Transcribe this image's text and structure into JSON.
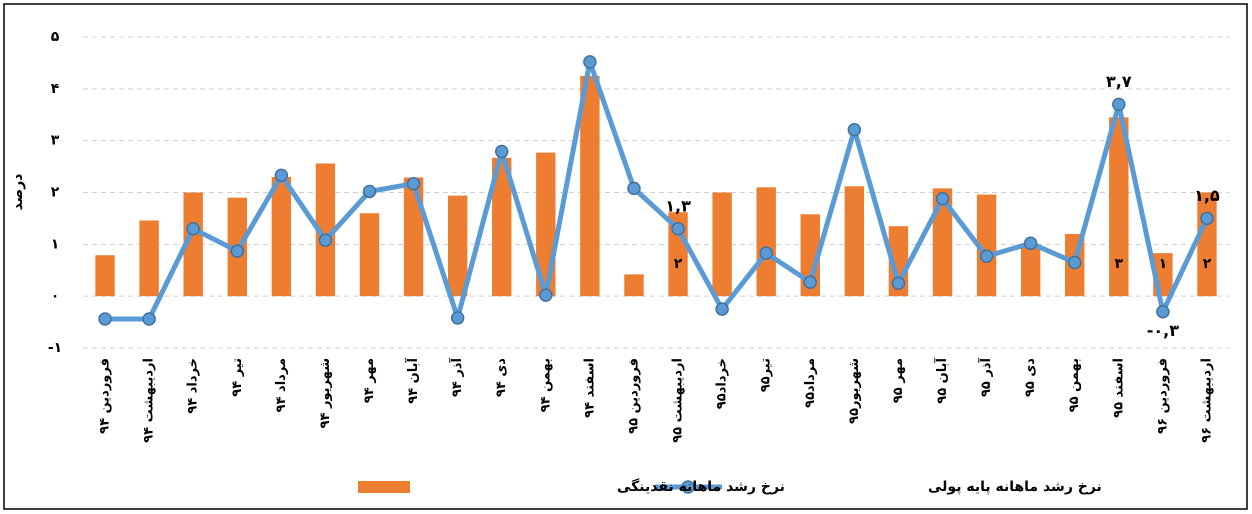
{
  "chart_data": {
    "type": "bar_line",
    "y_label": "درصد",
    "categories": [
      "فروردین ۹۴",
      "اردیبهشت ۹۴",
      "خرداد ۹۴",
      "تیر ۹۴",
      "مرداد ۹۴",
      "شهریور ۹۴",
      "مهر ۹۴",
      "آبان ۹۴",
      "آذر ۹۴",
      "دی ۹۴",
      "بهمن ۹۴",
      "اسفند ۹۴",
      "فروردین ۹۵",
      "اردیبهشت ۹۵",
      "خرداد۹۵",
      "تیر۹۵",
      "مرداد۹۵",
      "شهریور۹۵",
      "مهر ۹۵",
      "آبان ۹۵",
      "آذر ۹۵",
      "دی ۹۵",
      "بهمن ۹۵",
      "اسفند ۹۵",
      "فروردین ۹۶",
      "اردیبهشت ۹۶"
    ],
    "series": [
      {
        "name": "نرخ رشد ماهانه نقدینگی",
        "kind": "bar",
        "color": "#ed7d31",
        "values": [
          0.79,
          1.46,
          2.0,
          1.9,
          2.3,
          2.56,
          1.6,
          2.29,
          1.94,
          2.67,
          2.77,
          4.25,
          0.42,
          1.62,
          2.0,
          2.1,
          1.58,
          2.12,
          1.35,
          2.08,
          1.96,
          1.0,
          1.2,
          3.45,
          0.83,
          2.0
        ],
        "value_labels": [
          null,
          null,
          null,
          null,
          null,
          null,
          null,
          null,
          null,
          null,
          null,
          null,
          null,
          "۲",
          null,
          null,
          null,
          null,
          null,
          null,
          null,
          null,
          null,
          "۳",
          "۱",
          "۲"
        ]
      },
      {
        "name": "نرخ رشد ماهانه پایه پولی",
        "kind": "line",
        "color": "#5b9bd5",
        "values": [
          -0.44,
          -0.44,
          1.3,
          0.87,
          2.33,
          1.08,
          2.02,
          2.17,
          -0.42,
          2.79,
          0.02,
          4.52,
          2.08,
          1.3,
          -0.25,
          0.83,
          0.27,
          3.21,
          0.25,
          1.88,
          0.77,
          1.02,
          0.65,
          3.7,
          -0.3,
          1.5
        ],
        "value_labels": [
          null,
          null,
          null,
          null,
          null,
          null,
          null,
          null,
          null,
          null,
          null,
          null,
          null,
          "۱,۳",
          null,
          null,
          null,
          null,
          null,
          null,
          null,
          null,
          null,
          "۳,۷",
          "-۰,۳",
          "۱,۵"
        ]
      }
    ],
    "ylim": [
      -1,
      5
    ],
    "yticks": [
      {
        "value": -1,
        "label": "-۱"
      },
      {
        "value": 0,
        "label": "٠"
      },
      {
        "value": 1,
        "label": "۱"
      },
      {
        "value": 2,
        "label": "۲"
      },
      {
        "value": 3,
        "label": "۳"
      },
      {
        "value": 4,
        "label": "۴"
      },
      {
        "value": 5,
        "label": "۵"
      }
    ],
    "grid": true
  }
}
